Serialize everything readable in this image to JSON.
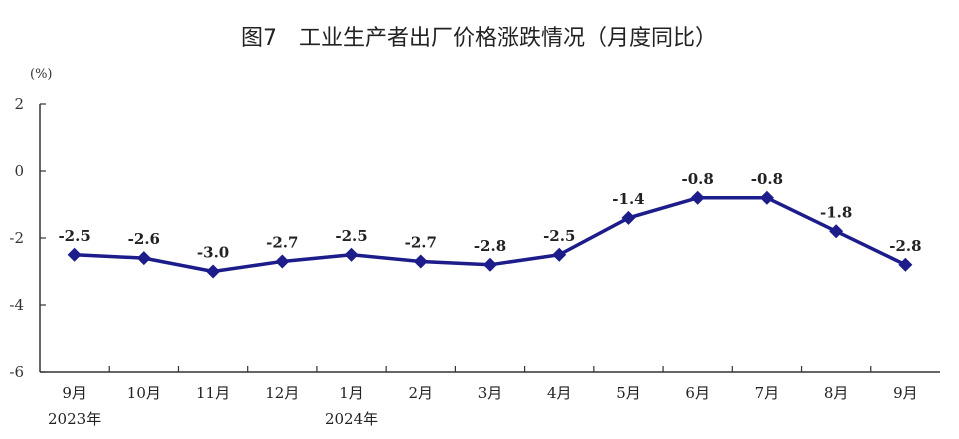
{
  "chart_data": {
    "type": "line",
    "title": "图7　工业生产者出厂价格涨跌情况（月度同比）",
    "unit": "(%)",
    "categories": [
      "9月",
      "10月",
      "11月",
      "12月",
      "1月",
      "2月",
      "3月",
      "4月",
      "5月",
      "6月",
      "7月",
      "8月",
      "9月"
    ],
    "year_labels": [
      {
        "index": 0,
        "text": "2023年"
      },
      {
        "index": 4,
        "text": "2024年"
      }
    ],
    "series": [
      {
        "values": [
          -2.5,
          -2.6,
          -3.0,
          -2.7,
          -2.5,
          -2.7,
          -2.8,
          -2.5,
          -1.4,
          -0.8,
          -0.8,
          -1.8,
          -2.8
        ],
        "labels": [
          "-2.5",
          "-2.6",
          "-3.0",
          "-2.7",
          "-2.5",
          "-2.7",
          "-2.8",
          "-2.5",
          "-1.4",
          "-0.8",
          "-0.8",
          "-1.8",
          "-2.8"
        ]
      }
    ],
    "yticks": [
      "2",
      "0",
      "-2",
      "-4",
      "-6"
    ],
    "ylim": [
      -6,
      2
    ],
    "grid": false,
    "colors": {
      "line": "#1c1c8a",
      "marker": "#1c1c8a"
    }
  }
}
